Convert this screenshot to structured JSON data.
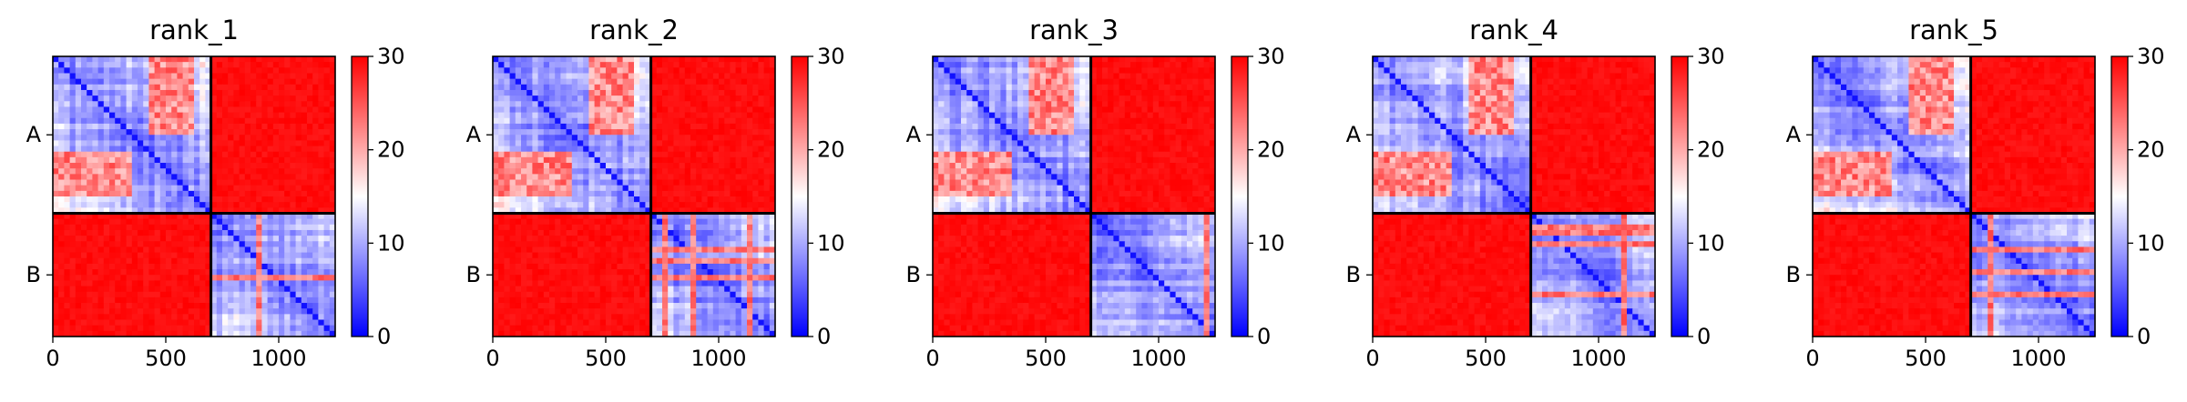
{
  "chart_data": [
    {
      "type": "heatmap",
      "title": "rank_1",
      "x_ticks": [
        0,
        500,
        1000
      ],
      "xlim": [
        0,
        1250
      ],
      "y_tick_labels": [
        "A",
        "B"
      ],
      "chain_boundary": 700,
      "color_range": [
        0,
        30
      ],
      "colorbar_ticks": [
        0,
        10,
        20,
        30
      ],
      "colormap": [
        "#0000ff",
        "#ffffff",
        "#ff0000"
      ],
      "intra_chain_blocks_shown": "mostly blue (low values) with red patches",
      "inter_chain_blocks_shown": "red (about 30)"
    },
    {
      "type": "heatmap",
      "title": "rank_2",
      "x_ticks": [
        0,
        500,
        1000
      ],
      "xlim": [
        0,
        1250
      ],
      "y_tick_labels": [
        "A",
        "B"
      ],
      "chain_boundary": 700,
      "color_range": [
        0,
        30
      ],
      "colorbar_ticks": [
        0,
        10,
        20,
        30
      ],
      "colormap": [
        "#0000ff",
        "#ffffff",
        "#ff0000"
      ]
    },
    {
      "type": "heatmap",
      "title": "rank_3",
      "x_ticks": [
        0,
        500,
        1000
      ],
      "xlim": [
        0,
        1250
      ],
      "y_tick_labels": [
        "A",
        "B"
      ],
      "chain_boundary": 700,
      "color_range": [
        0,
        30
      ],
      "colorbar_ticks": [
        0,
        10,
        20,
        30
      ],
      "colormap": [
        "#0000ff",
        "#ffffff",
        "#ff0000"
      ]
    },
    {
      "type": "heatmap",
      "title": "rank_4",
      "x_ticks": [
        0,
        500,
        1000
      ],
      "xlim": [
        0,
        1250
      ],
      "y_tick_labels": [
        "A",
        "B"
      ],
      "chain_boundary": 700,
      "color_range": [
        0,
        30
      ],
      "colorbar_ticks": [
        0,
        10,
        20,
        30
      ],
      "colormap": [
        "#0000ff",
        "#ffffff",
        "#ff0000"
      ]
    },
    {
      "type": "heatmap",
      "title": "rank_5",
      "x_ticks": [
        0,
        500,
        1000
      ],
      "xlim": [
        0,
        1250
      ],
      "y_tick_labels": [
        "A",
        "B"
      ],
      "chain_boundary": 700,
      "color_range": [
        0,
        30
      ],
      "colorbar_ticks": [
        0,
        10,
        20,
        30
      ],
      "colormap": [
        "#0000ff",
        "#ffffff",
        "#ff0000"
      ]
    }
  ]
}
